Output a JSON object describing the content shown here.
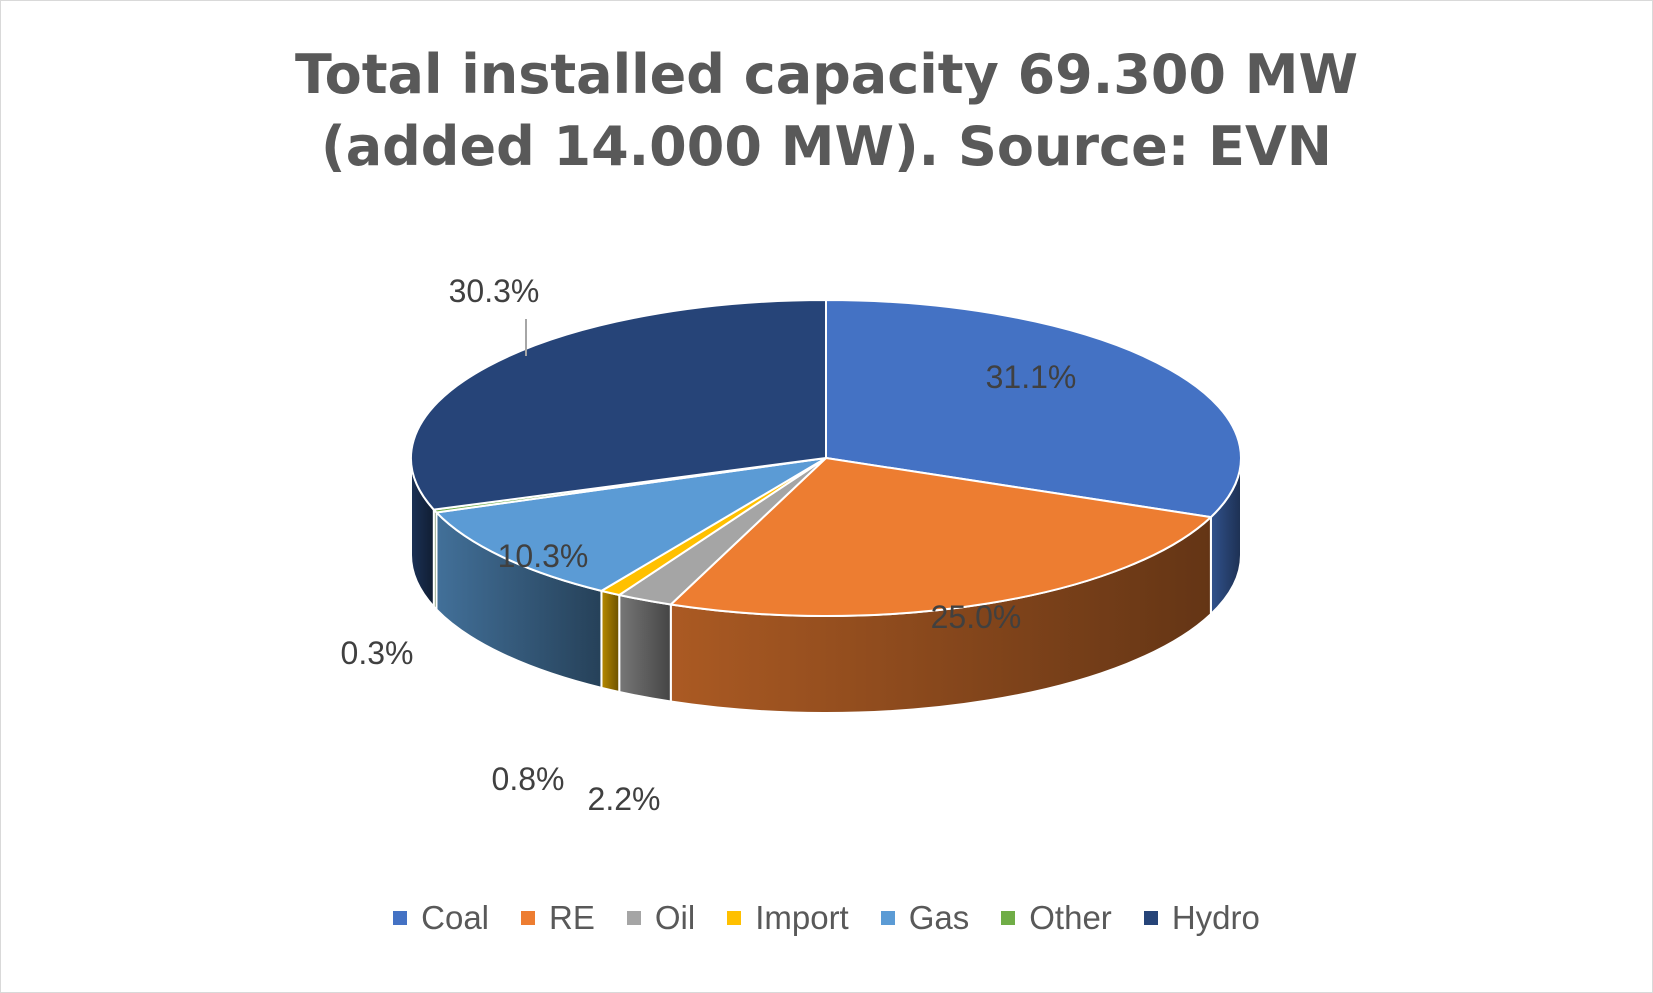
{
  "chart_data": {
    "type": "pie",
    "title_lines": [
      "Total installed capacity 69.300 MW",
      "(added 14.000 MW). Source: EVN"
    ],
    "categories": [
      "Coal",
      "RE",
      "Oil",
      "Import",
      "Gas",
      "Other",
      "Hydro"
    ],
    "values": [
      31.1,
      25.0,
      2.2,
      0.8,
      10.3,
      0.3,
      30.3
    ],
    "data_labels": [
      "31.1%",
      "25.0%",
      "2.2%",
      "0.8%",
      "10.3%",
      "0.3%",
      "30.3%"
    ],
    "colors": [
      "#4472c4",
      "#ed7d31",
      "#a5a5a5",
      "#ffc000",
      "#5b9bd5",
      "#70ad47",
      "#264478"
    ],
    "three_d": true,
    "legend_position": "bottom"
  }
}
